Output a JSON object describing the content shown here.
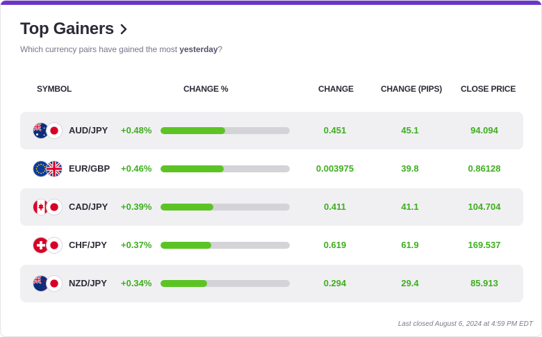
{
  "header": {
    "title": "Top Gainers",
    "subtitle_prefix": "Which currency pairs have gained the most ",
    "subtitle_emphasis": "yesterday",
    "subtitle_suffix": "?"
  },
  "columns": {
    "symbol": "SYMBOL",
    "change_pct": "CHANGE %",
    "change": "CHANGE",
    "change_pips": "CHANGE (PIPS)",
    "close_price": "CLOSE PRICE"
  },
  "bar_colors": {
    "fill": "#5bc424",
    "track": "#d3d3d8"
  },
  "rows": [
    {
      "symbol": "AUD/JPY",
      "change_pct": "+0.48%",
      "bar_fraction": 0.5,
      "change": "0.451",
      "pips": "45.1",
      "close": "94.094",
      "flag1": "australia-flag-icon",
      "flag2": "japan-flag-icon"
    },
    {
      "symbol": "EUR/GBP",
      "change_pct": "+0.46%",
      "bar_fraction": 0.49,
      "change": "0.003975",
      "pips": "39.8",
      "close": "0.86128",
      "flag1": "eu-flag-icon",
      "flag2": "uk-flag-icon"
    },
    {
      "symbol": "CAD/JPY",
      "change_pct": "+0.39%",
      "bar_fraction": 0.41,
      "change": "0.411",
      "pips": "41.1",
      "close": "104.704",
      "flag1": "canada-flag-icon",
      "flag2": "japan-flag-icon"
    },
    {
      "symbol": "CHF/JPY",
      "change_pct": "+0.37%",
      "bar_fraction": 0.39,
      "change": "0.619",
      "pips": "61.9",
      "close": "169.537",
      "flag1": "switzerland-flag-icon",
      "flag2": "japan-flag-icon"
    },
    {
      "symbol": "NZD/JPY",
      "change_pct": "+0.34%",
      "bar_fraction": 0.36,
      "change": "0.294",
      "pips": "29.4",
      "close": "85.913",
      "flag1": "new-zealand-flag-icon",
      "flag2": "japan-flag-icon"
    }
  ],
  "footer": {
    "note": "Last closed August 6, 2024 at 4:59 PM EDT"
  }
}
